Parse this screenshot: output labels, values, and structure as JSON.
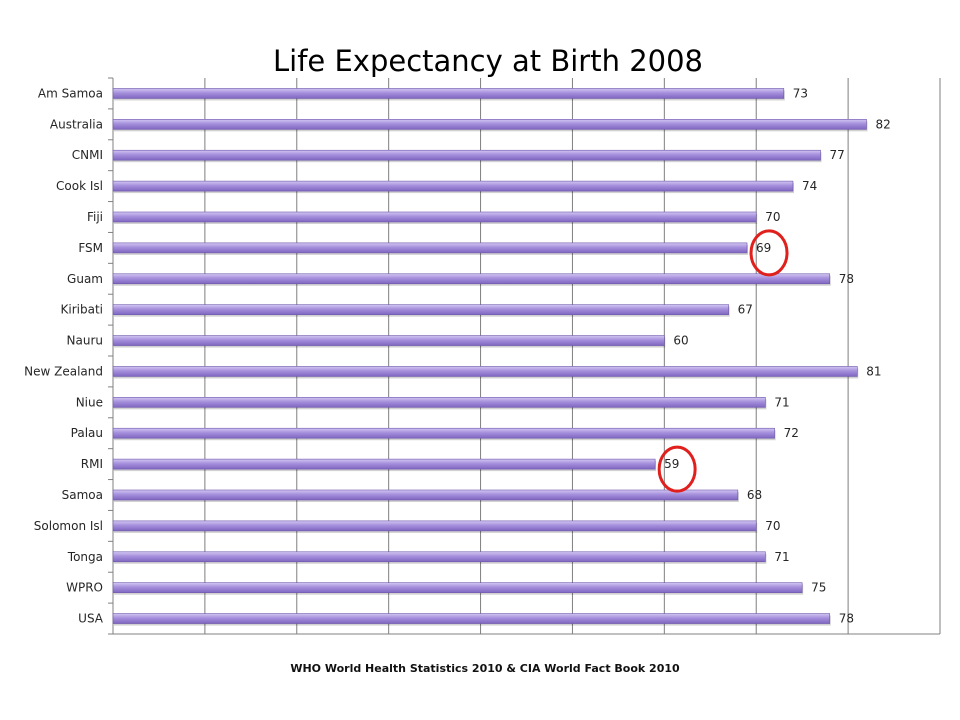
{
  "chart_data": {
    "type": "bar",
    "orientation": "horizontal",
    "title": "Life Expectancy at Birth 2008",
    "source_note": "WHO World Health Statistics 2010 & CIA World Fact Book 2010",
    "categories": [
      "Am Samoa",
      "Australia",
      "CNMI",
      "Cook Isl",
      "Fiji",
      "FSM",
      "Guam",
      "Kiribati",
      "Nauru",
      "New Zealand",
      "Niue",
      "Palau",
      "RMI",
      "Samoa",
      "Solomon Isl",
      "Tonga",
      "WPRO",
      "USA"
    ],
    "values": [
      73,
      82,
      77,
      74,
      70,
      69,
      78,
      67,
      60,
      81,
      71,
      72,
      59,
      68,
      70,
      71,
      75,
      78
    ],
    "xlim": [
      0,
      90
    ],
    "x_gridline_step": 10,
    "x_tick_labels_shown": false,
    "grid": true,
    "data_labels": true,
    "highlighted_categories": [
      "FSM",
      "RMI"
    ],
    "colors": {
      "bar": "#9b84d6",
      "bar_highlight": "#c6b7ee",
      "bar_edge": "#6f58ad",
      "highlight_circle": "#e0201c",
      "grid": "#7f7f7f"
    }
  }
}
